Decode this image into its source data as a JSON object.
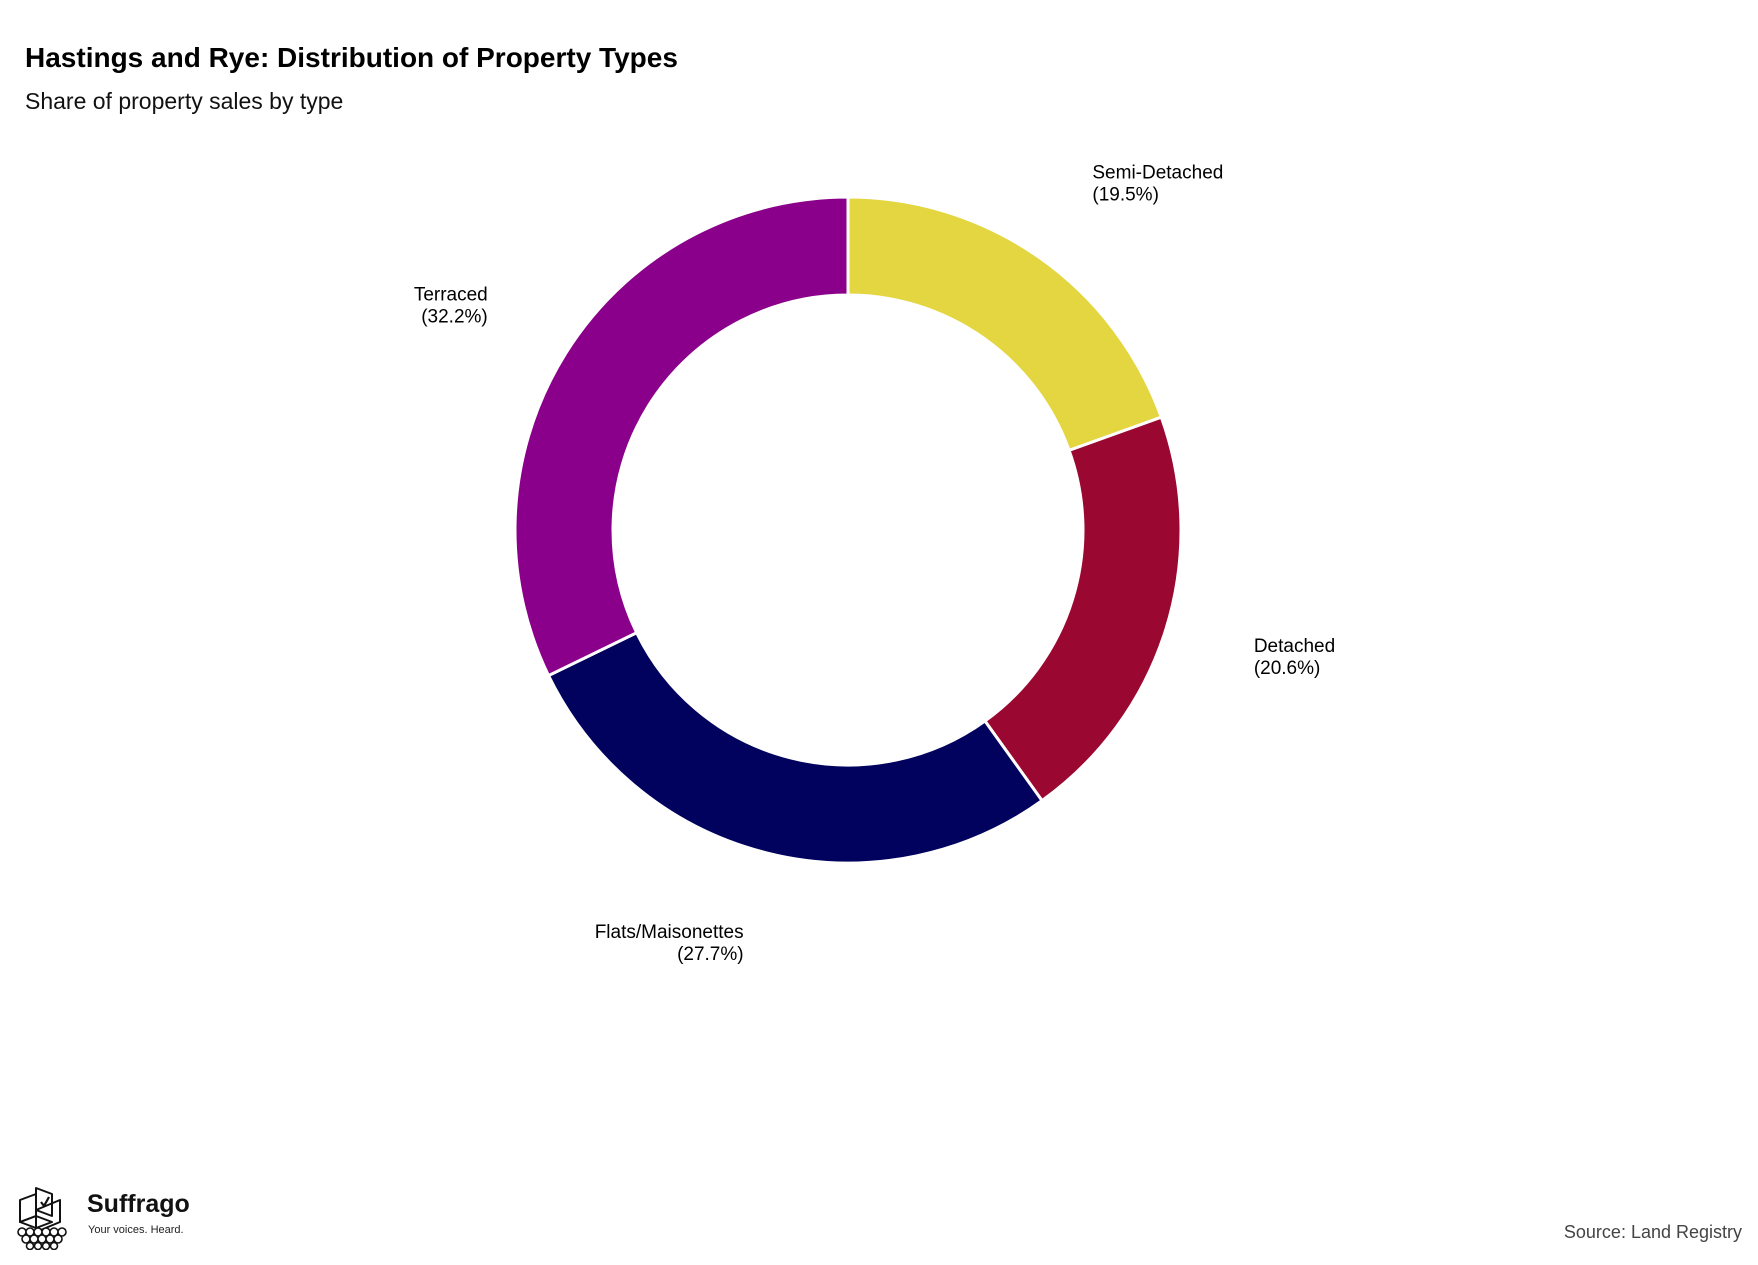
{
  "title": "Hastings and Rye: Distribution of Property Types",
  "subtitle": "Share of property sales by type",
  "chart_data": {
    "type": "pie",
    "variant": "donut",
    "title": "Hastings and Rye: Distribution of Property Types",
    "subtitle": "Share of property sales by type",
    "start_angle": "12 o'clock",
    "direction": "clockwise",
    "legend": "none",
    "slices": [
      {
        "label": "Semi-Detached",
        "value": 19.5,
        "value_label": "(19.5%)",
        "color": "#e3d641"
      },
      {
        "label": "Detached",
        "value": 20.6,
        "value_label": "(20.6%)",
        "color": "#9a0831"
      },
      {
        "label": "Flats/Maisonettes",
        "value": 27.7,
        "value_label": "(27.7%)",
        "color": "#01015e"
      },
      {
        "label": "Terraced",
        "value": 32.2,
        "value_label": "(32.2%)",
        "color": "#8b008a"
      }
    ]
  },
  "branding": {
    "name": "Suffrago",
    "tagline": "Your voices. Heard.",
    "logo_icon": "ballot-box-icon"
  },
  "source": "Source: Land Registry"
}
